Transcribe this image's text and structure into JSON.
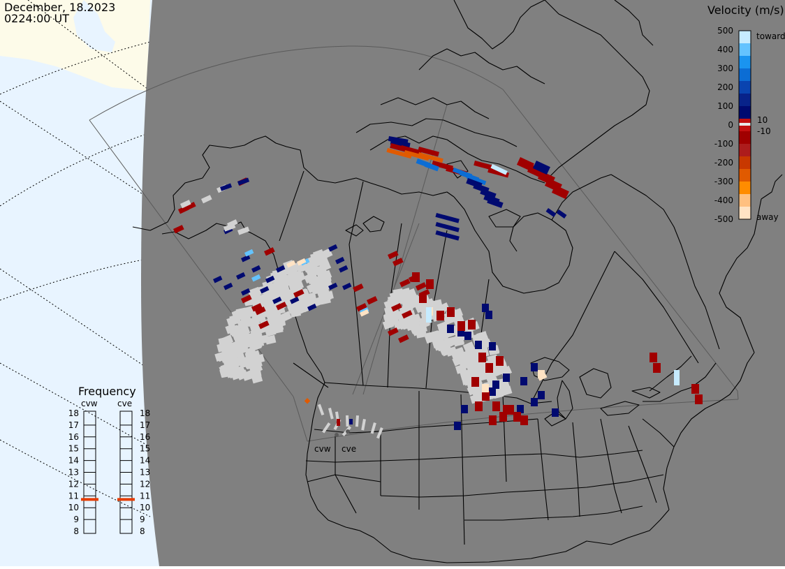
{
  "header": {
    "date": "December, 18.2023",
    "time": "0224:00 UT"
  },
  "colorbar": {
    "title": "Velocity (m/s)",
    "tick_labels": [
      "500",
      "400",
      "300",
      "200",
      "100",
      "0",
      "-100",
      "-200",
      "-300",
      "-400",
      "-500"
    ],
    "inner_labels": [
      "10",
      "-10"
    ],
    "toward_label": "toward",
    "away_label": "away",
    "colors_top_to_bottom": [
      "#c6ebff",
      "#64c3ff",
      "#1a94f0",
      "#0c6dd4",
      "#0a44b0",
      "#08238a",
      "#000a70",
      "#c41010",
      "#a00000",
      "#ad1c1c",
      "#c83800",
      "#e05a00",
      "#ff8c00",
      "#ffc080",
      "#ffe3c4"
    ]
  },
  "frequency": {
    "title": "Frequency",
    "radars": [
      "cvw",
      "cve"
    ],
    "scale": [
      "18",
      "17",
      "16",
      "15",
      "14",
      "13",
      "12",
      "11",
      "10",
      "9",
      "8"
    ],
    "cvw_mhz": 10.7,
    "cve_mhz": 10.7,
    "marker_color": "#e63c00"
  },
  "map": {
    "ocean_color": "#e8f4ff",
    "land_color": "#fdfbe9",
    "night_color": "#808080",
    "ground_scatter_color": "#d2d2d2",
    "radar_labels": [
      "cvw",
      "cve"
    ]
  }
}
